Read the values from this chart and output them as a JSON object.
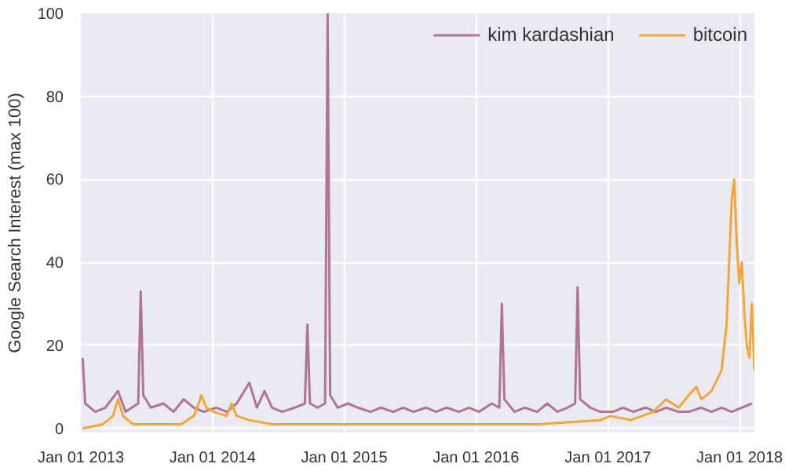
{
  "chart_data": {
    "type": "line",
    "ylabel": "Google Search Interest (max 100)",
    "xlim": [
      "2013-01-01",
      "2018-02-11"
    ],
    "ylim": [
      -1,
      100
    ],
    "xticks": [
      {
        "value": "2013-01-01",
        "label": "Jan 01 2013"
      },
      {
        "value": "2014-01-01",
        "label": "Jan 01 2014"
      },
      {
        "value": "2015-01-01",
        "label": "Jan 01 2015"
      },
      {
        "value": "2016-01-01",
        "label": "Jan 01 2016"
      },
      {
        "value": "2017-01-01",
        "label": "Jan 01 2017"
      },
      {
        "value": "2018-01-01",
        "label": "Jan 01 2018"
      }
    ],
    "yticks": [
      0,
      20,
      40,
      60,
      80,
      100
    ],
    "grid": true,
    "legend": "top right",
    "marker": "none",
    "line_style": "solid",
    "series": [
      {
        "name": "kim kardashian",
        "color": "#b0768e",
        "x": [
          "2013-01-06",
          "2013-01-13",
          "2013-02-10",
          "2013-03-10",
          "2013-04-14",
          "2013-05-05",
          "2013-06-09",
          "2013-06-16",
          "2013-06-23",
          "2013-07-14",
          "2013-08-18",
          "2013-09-15",
          "2013-10-13",
          "2013-11-10",
          "2013-12-08",
          "2014-01-12",
          "2014-02-09",
          "2014-03-09",
          "2014-04-13",
          "2014-05-04",
          "2014-05-25",
          "2014-06-15",
          "2014-07-13",
          "2014-08-17",
          "2014-09-14",
          "2014-09-21",
          "2014-09-28",
          "2014-10-19",
          "2014-11-09",
          "2014-11-16",
          "2014-11-23",
          "2014-12-14",
          "2015-01-11",
          "2015-02-08",
          "2015-03-15",
          "2015-04-12",
          "2015-05-17",
          "2015-06-14",
          "2015-07-12",
          "2015-08-16",
          "2015-09-13",
          "2015-10-11",
          "2015-11-15",
          "2015-12-13",
          "2016-01-10",
          "2016-02-14",
          "2016-03-06",
          "2016-03-13",
          "2016-03-20",
          "2016-04-17",
          "2016-05-15",
          "2016-06-19",
          "2016-07-17",
          "2016-08-14",
          "2016-09-11",
          "2016-10-02",
          "2016-10-09",
          "2016-10-16",
          "2016-11-13",
          "2016-12-11",
          "2017-01-15",
          "2017-02-12",
          "2017-03-12",
          "2017-04-16",
          "2017-05-14",
          "2017-06-11",
          "2017-07-16",
          "2017-08-13",
          "2017-09-17",
          "2017-10-15",
          "2017-11-12",
          "2017-12-10",
          "2018-01-07",
          "2018-02-04"
        ],
        "values": [
          17,
          6,
          4,
          5,
          9,
          4,
          6,
          33,
          8,
          5,
          6,
          4,
          7,
          5,
          4,
          5,
          4,
          6,
          11,
          5,
          9,
          5,
          4,
          5,
          6,
          25,
          6,
          5,
          6,
          100,
          8,
          5,
          6,
          5,
          4,
          5,
          4,
          5,
          4,
          5,
          4,
          5,
          4,
          5,
          4,
          6,
          5,
          30,
          7,
          4,
          5,
          4,
          6,
          4,
          5,
          6,
          34,
          7,
          5,
          4,
          4,
          5,
          4,
          5,
          4,
          5,
          4,
          4,
          5,
          4,
          5,
          4,
          5,
          6
        ]
      },
      {
        "name": "bitcoin",
        "color": "#f5a637",
        "x": [
          "2013-01-06",
          "2013-03-03",
          "2013-03-31",
          "2013-04-14",
          "2013-04-28",
          "2013-05-26",
          "2013-08-04",
          "2013-10-06",
          "2013-11-10",
          "2013-11-24",
          "2013-12-01",
          "2013-12-15",
          "2014-01-05",
          "2014-02-09",
          "2014-02-23",
          "2014-03-09",
          "2014-04-13",
          "2014-06-15",
          "2014-09-14",
          "2015-01-11",
          "2015-06-14",
          "2016-01-10",
          "2016-06-19",
          "2016-12-11",
          "2017-01-08",
          "2017-03-05",
          "2017-05-07",
          "2017-06-11",
          "2017-07-16",
          "2017-08-13",
          "2017-09-03",
          "2017-09-17",
          "2017-10-15",
          "2017-11-12",
          "2017-11-26",
          "2017-12-03",
          "2017-12-10",
          "2017-12-17",
          "2017-12-24",
          "2017-12-31",
          "2018-01-07",
          "2018-01-14",
          "2018-01-21",
          "2018-01-28",
          "2018-02-04",
          "2018-02-11"
        ],
        "values": [
          0,
          1,
          3,
          7,
          3,
          1,
          1,
          1,
          3,
          6,
          8,
          5,
          4,
          3,
          6,
          3,
          2,
          1,
          1,
          1,
          1,
          1,
          1,
          2,
          3,
          2,
          4,
          7,
          5,
          8,
          10,
          7,
          9,
          14,
          25,
          40,
          55,
          60,
          45,
          35,
          40,
          28,
          20,
          17,
          30,
          14
        ]
      }
    ]
  }
}
